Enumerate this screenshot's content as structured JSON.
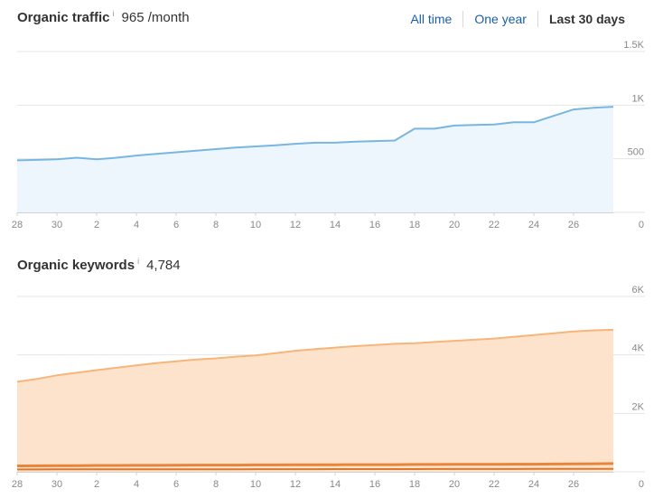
{
  "traffic": {
    "title": "Organic traffic",
    "info": "i",
    "value": "965 /month"
  },
  "ranges": [
    "All time",
    "One year",
    "Last 30 days"
  ],
  "keywords": {
    "title": "Organic keywords",
    "info": "i",
    "value": "4,784"
  },
  "colors": {
    "traffic_line": "#78b6e2",
    "traffic_fill": "#eef6fd",
    "keywords_line": "#f7b57a",
    "keywords_fill": "#fde3cc",
    "positions_line": "#e8853a",
    "gridline": "#e6e6e6"
  },
  "chart_data": [
    {
      "type": "area",
      "x_tick_labels": [
        "28",
        "30",
        "2",
        "4",
        "6",
        "8",
        "10",
        "12",
        "14",
        "16",
        "18",
        "20",
        "22",
        "24",
        "26"
      ],
      "y_tick_labels": [
        "1.5K",
        "1K",
        "500",
        "0"
      ],
      "ylim": [
        0,
        1500
      ],
      "y_ticks": [
        1500,
        1000,
        500,
        0
      ],
      "series": [
        {
          "values": [
            485,
            490,
            495,
            510,
            495,
            510,
            530,
            545,
            560,
            575,
            590,
            605,
            615,
            625,
            640,
            650,
            650,
            660,
            665,
            670,
            780,
            780,
            810,
            815,
            820,
            840,
            840,
            900,
            960,
            975,
            985
          ]
        }
      ]
    },
    {
      "type": "area",
      "x_tick_labels": [
        "28",
        "30",
        "2",
        "4",
        "6",
        "8",
        "10",
        "12",
        "14",
        "16",
        "18",
        "20",
        "22",
        "24",
        "26"
      ],
      "y_tick_labels": [
        "6K",
        "4K",
        "2K",
        "0"
      ],
      "ylim": [
        0,
        6000
      ],
      "y_ticks": [
        6000,
        4000,
        2000,
        0
      ],
      "series": [
        {
          "values": [
            3080,
            3180,
            3300,
            3390,
            3480,
            3560,
            3640,
            3720,
            3780,
            3840,
            3880,
            3940,
            3980,
            4060,
            4140,
            4200,
            4250,
            4300,
            4340,
            4380,
            4400,
            4440,
            4480,
            4520,
            4560,
            4620,
            4680,
            4740,
            4800,
            4840,
            4860
          ]
        },
        {
          "values": [
            200,
            205,
            210,
            210,
            215,
            215,
            220,
            220,
            225,
            230,
            230,
            230,
            235,
            235,
            240,
            240,
            240,
            245,
            245,
            245,
            250,
            250,
            255,
            255,
            255,
            260,
            260,
            265,
            270,
            275,
            280
          ]
        },
        {
          "values": [
            80,
            80,
            82,
            82,
            84,
            85,
            85,
            86,
            86,
            87,
            88,
            88,
            89,
            90,
            90,
            90,
            92,
            92,
            92,
            94,
            94,
            95,
            95,
            96,
            96,
            97,
            98,
            98,
            99,
            100,
            100
          ]
        }
      ]
    }
  ]
}
